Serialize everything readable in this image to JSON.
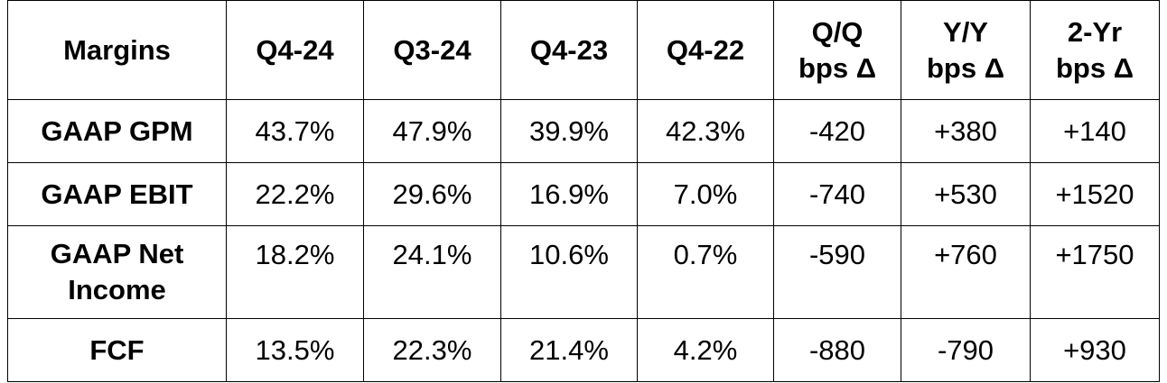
{
  "table": {
    "headers": [
      "Margins",
      "Q4-24",
      "Q3-24",
      "Q4-23",
      "Q4-22",
      "Q/Q\nbps Δ",
      "Y/Y\nbps Δ",
      "2-Yr\nbps Δ"
    ],
    "header_lines": {
      "margins": "Margins",
      "q4_24": "Q4-24",
      "q3_24": "Q3-24",
      "q4_23": "Q4-23",
      "q4_22": "Q4-22",
      "qq": [
        "Q/Q",
        "bps Δ"
      ],
      "yy": [
        "Y/Y",
        "bps Δ"
      ],
      "two_yr": [
        "2-Yr",
        "bps Δ"
      ]
    },
    "rows": [
      {
        "label": "GAAP GPM",
        "label_lines": [
          "GAAP GPM"
        ],
        "values": [
          "43.7%",
          "47.9%",
          "39.9%",
          "42.3%",
          "-420",
          "+380",
          "+140"
        ]
      },
      {
        "label": "GAAP EBIT",
        "label_lines": [
          "GAAP EBIT"
        ],
        "values": [
          "22.2%",
          "29.6%",
          "16.9%",
          "7.0%",
          "-740",
          "+530",
          "+1520"
        ]
      },
      {
        "label": "GAAP Net Income",
        "label_lines": [
          "GAAP Net",
          "Income"
        ],
        "values": [
          "18.2%",
          "24.1%",
          "10.6%",
          "0.7%",
          "-590",
          "+760",
          "+1750"
        ]
      },
      {
        "label": "FCF",
        "label_lines": [
          "FCF"
        ],
        "values": [
          "13.5%",
          "22.3%",
          "21.4%",
          "4.2%",
          "-880",
          "-790",
          "+930"
        ]
      }
    ]
  }
}
